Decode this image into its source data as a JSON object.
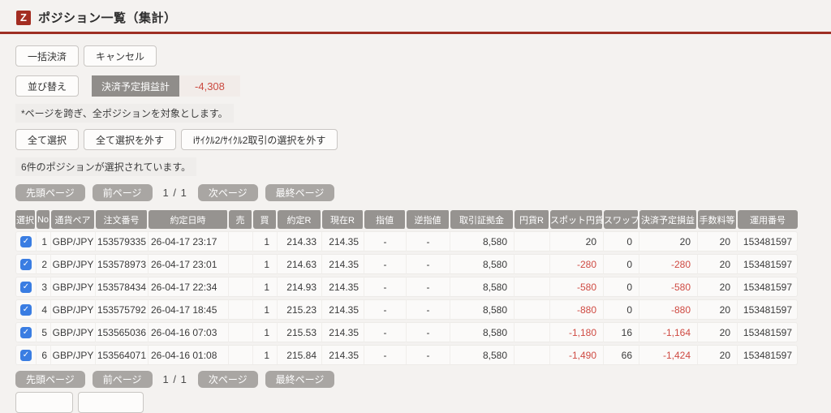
{
  "header": {
    "logo_letter": "Z",
    "title": "ポジション一覧（集計）"
  },
  "toolbar": {
    "bulk_settle_label": "一括決済",
    "cancel_label": "キャンセル",
    "sort_label": "並び替え",
    "pl_total_label": "決済予定損益計",
    "pl_total_value": "-4,308"
  },
  "notes": {
    "page_note": "*ページを跨ぎ、全ポジションを対象とします。",
    "selection_status": "6件のポジションが選択されています。"
  },
  "selection_buttons": {
    "select_all": "全て選択",
    "deselect_all": "全て選択を外す",
    "deselect_icycle": "iｻｲｸﾙ2/ｻｲｸﾙ2取引の選択を外す"
  },
  "pagination": {
    "first": "先頭ページ",
    "prev": "前ページ",
    "indicator": "1 / 1",
    "next": "次ページ",
    "last": "最終ページ"
  },
  "table": {
    "columns": [
      "選択",
      "No",
      "通貨ペア",
      "注文番号",
      "約定日時",
      "売",
      "買",
      "約定R",
      "現在R",
      "指値",
      "逆指値",
      "取引証拠金",
      "円貨R",
      "スポット円貨",
      "スワップ",
      "決済予定損益",
      "手数料等",
      "運用番号"
    ],
    "rows": [
      {
        "selected": true,
        "no": "1",
        "pair": "GBP/JPY",
        "order_no": "153579335",
        "exec_time": "26-04-17 23:17",
        "sell": "",
        "buy": "1",
        "exec_rate": "214.33",
        "current_rate": "214.35",
        "limit": "-",
        "stop": "-",
        "margin": "8,580",
        "jpy_rate": "",
        "spot_jpy": "20",
        "swap": "0",
        "pl": "20",
        "fee": "20",
        "account_no": "153481597"
      },
      {
        "selected": true,
        "no": "2",
        "pair": "GBP/JPY",
        "order_no": "153578973",
        "exec_time": "26-04-17 23:01",
        "sell": "",
        "buy": "1",
        "exec_rate": "214.63",
        "current_rate": "214.35",
        "limit": "-",
        "stop": "-",
        "margin": "8,580",
        "jpy_rate": "",
        "spot_jpy": "-280",
        "swap": "0",
        "pl": "-280",
        "fee": "20",
        "account_no": "153481597"
      },
      {
        "selected": true,
        "no": "3",
        "pair": "GBP/JPY",
        "order_no": "153578434",
        "exec_time": "26-04-17 22:34",
        "sell": "",
        "buy": "1",
        "exec_rate": "214.93",
        "current_rate": "214.35",
        "limit": "-",
        "stop": "-",
        "margin": "8,580",
        "jpy_rate": "",
        "spot_jpy": "-580",
        "swap": "0",
        "pl": "-580",
        "fee": "20",
        "account_no": "153481597"
      },
      {
        "selected": true,
        "no": "4",
        "pair": "GBP/JPY",
        "order_no": "153575792",
        "exec_time": "26-04-17 18:45",
        "sell": "",
        "buy": "1",
        "exec_rate": "215.23",
        "current_rate": "214.35",
        "limit": "-",
        "stop": "-",
        "margin": "8,580",
        "jpy_rate": "",
        "spot_jpy": "-880",
        "swap": "0",
        "pl": "-880",
        "fee": "20",
        "account_no": "153481597"
      },
      {
        "selected": true,
        "no": "5",
        "pair": "GBP/JPY",
        "order_no": "153565036",
        "exec_time": "26-04-16 07:03",
        "sell": "",
        "buy": "1",
        "exec_rate": "215.53",
        "current_rate": "214.35",
        "limit": "-",
        "stop": "-",
        "margin": "8,580",
        "jpy_rate": "",
        "spot_jpy": "-1,180",
        "swap": "16",
        "pl": "-1,164",
        "fee": "20",
        "account_no": "153481597"
      },
      {
        "selected": true,
        "no": "6",
        "pair": "GBP/JPY",
        "order_no": "153564071",
        "exec_time": "26-04-16 01:08",
        "sell": "",
        "buy": "1",
        "exec_rate": "215.84",
        "current_rate": "214.35",
        "limit": "-",
        "stop": "-",
        "margin": "8,580",
        "jpy_rate": "",
        "spot_jpy": "-1,490",
        "swap": "66",
        "pl": "-1,424",
        "fee": "20",
        "account_no": "153481597"
      }
    ]
  },
  "colors": {
    "accent_red": "#9e2e23",
    "logo_red": "#a32d22",
    "negative_red": "#cf4a42",
    "header_gray": "#969390",
    "pagination_gray": "#a9a6a3",
    "checkbox_blue": "#3a7de2",
    "page_bg": "#f4f2f0"
  }
}
